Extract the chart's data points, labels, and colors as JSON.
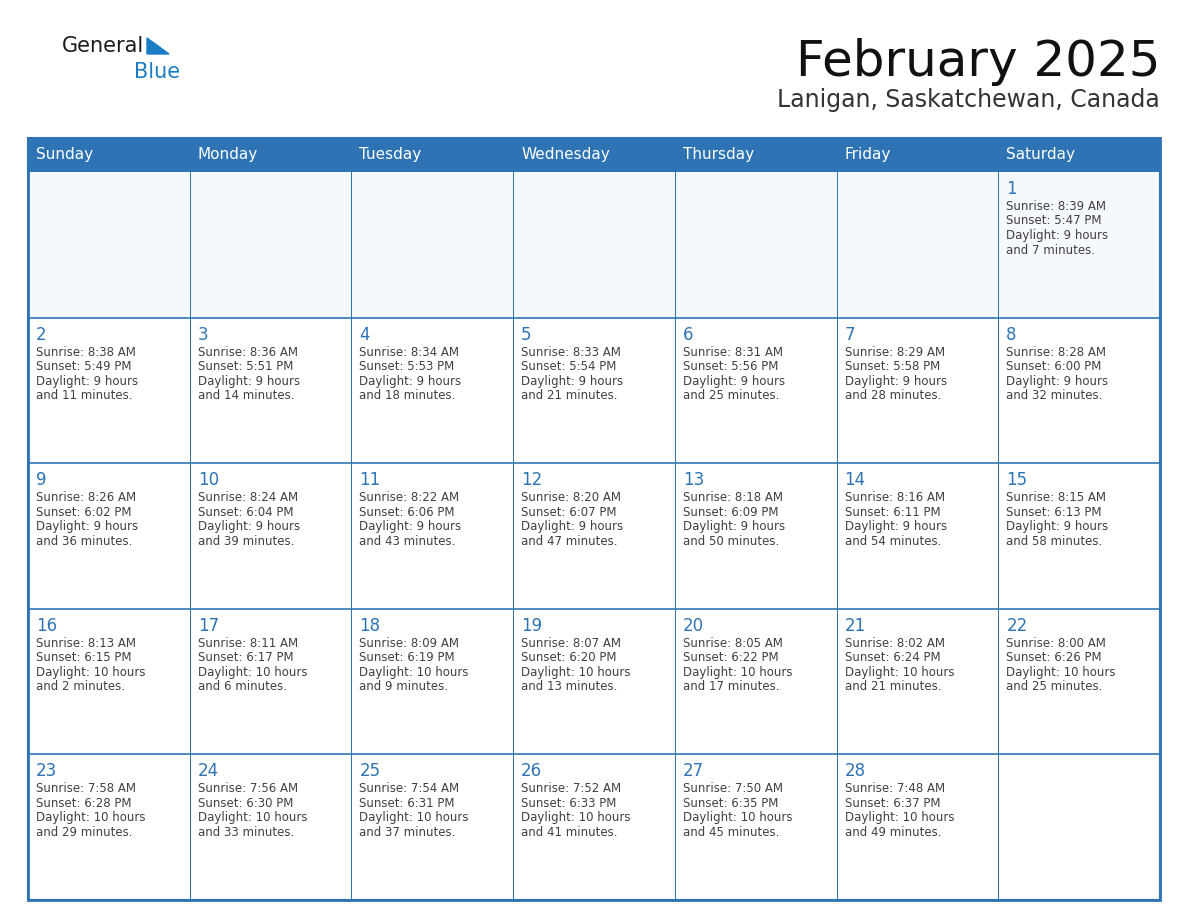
{
  "title": "February 2025",
  "subtitle": "Lanigan, Saskatchewan, Canada",
  "header_bg": "#2E74B5",
  "header_text_color": "#FFFFFF",
  "border_color": "#2E74B5",
  "day_number_color": "#2E74B5",
  "text_color": "#404040",
  "days_of_week": [
    "Sunday",
    "Monday",
    "Tuesday",
    "Wednesday",
    "Thursday",
    "Friday",
    "Saturday"
  ],
  "weeks": [
    [
      {
        "day": null,
        "sunrise": null,
        "sunset": null,
        "daylight": null
      },
      {
        "day": null,
        "sunrise": null,
        "sunset": null,
        "daylight": null
      },
      {
        "day": null,
        "sunrise": null,
        "sunset": null,
        "daylight": null
      },
      {
        "day": null,
        "sunrise": null,
        "sunset": null,
        "daylight": null
      },
      {
        "day": null,
        "sunrise": null,
        "sunset": null,
        "daylight": null
      },
      {
        "day": null,
        "sunrise": null,
        "sunset": null,
        "daylight": null
      },
      {
        "day": 1,
        "sunrise": "8:39 AM",
        "sunset": "5:47 PM",
        "daylight": "9 hours and 7 minutes."
      }
    ],
    [
      {
        "day": 2,
        "sunrise": "8:38 AM",
        "sunset": "5:49 PM",
        "daylight": "9 hours and 11 minutes."
      },
      {
        "day": 3,
        "sunrise": "8:36 AM",
        "sunset": "5:51 PM",
        "daylight": "9 hours and 14 minutes."
      },
      {
        "day": 4,
        "sunrise": "8:34 AM",
        "sunset": "5:53 PM",
        "daylight": "9 hours and 18 minutes."
      },
      {
        "day": 5,
        "sunrise": "8:33 AM",
        "sunset": "5:54 PM",
        "daylight": "9 hours and 21 minutes."
      },
      {
        "day": 6,
        "sunrise": "8:31 AM",
        "sunset": "5:56 PM",
        "daylight": "9 hours and 25 minutes."
      },
      {
        "day": 7,
        "sunrise": "8:29 AM",
        "sunset": "5:58 PM",
        "daylight": "9 hours and 28 minutes."
      },
      {
        "day": 8,
        "sunrise": "8:28 AM",
        "sunset": "6:00 PM",
        "daylight": "9 hours and 32 minutes."
      }
    ],
    [
      {
        "day": 9,
        "sunrise": "8:26 AM",
        "sunset": "6:02 PM",
        "daylight": "9 hours and 36 minutes."
      },
      {
        "day": 10,
        "sunrise": "8:24 AM",
        "sunset": "6:04 PM",
        "daylight": "9 hours and 39 minutes."
      },
      {
        "day": 11,
        "sunrise": "8:22 AM",
        "sunset": "6:06 PM",
        "daylight": "9 hours and 43 minutes."
      },
      {
        "day": 12,
        "sunrise": "8:20 AM",
        "sunset": "6:07 PM",
        "daylight": "9 hours and 47 minutes."
      },
      {
        "day": 13,
        "sunrise": "8:18 AM",
        "sunset": "6:09 PM",
        "daylight": "9 hours and 50 minutes."
      },
      {
        "day": 14,
        "sunrise": "8:16 AM",
        "sunset": "6:11 PM",
        "daylight": "9 hours and 54 minutes."
      },
      {
        "day": 15,
        "sunrise": "8:15 AM",
        "sunset": "6:13 PM",
        "daylight": "9 hours and 58 minutes."
      }
    ],
    [
      {
        "day": 16,
        "sunrise": "8:13 AM",
        "sunset": "6:15 PM",
        "daylight": "10 hours and 2 minutes."
      },
      {
        "day": 17,
        "sunrise": "8:11 AM",
        "sunset": "6:17 PM",
        "daylight": "10 hours and 6 minutes."
      },
      {
        "day": 18,
        "sunrise": "8:09 AM",
        "sunset": "6:19 PM",
        "daylight": "10 hours and 9 minutes."
      },
      {
        "day": 19,
        "sunrise": "8:07 AM",
        "sunset": "6:20 PM",
        "daylight": "10 hours and 13 minutes."
      },
      {
        "day": 20,
        "sunrise": "8:05 AM",
        "sunset": "6:22 PM",
        "daylight": "10 hours and 17 minutes."
      },
      {
        "day": 21,
        "sunrise": "8:02 AM",
        "sunset": "6:24 PM",
        "daylight": "10 hours and 21 minutes."
      },
      {
        "day": 22,
        "sunrise": "8:00 AM",
        "sunset": "6:26 PM",
        "daylight": "10 hours and 25 minutes."
      }
    ],
    [
      {
        "day": 23,
        "sunrise": "7:58 AM",
        "sunset": "6:28 PM",
        "daylight": "10 hours and 29 minutes."
      },
      {
        "day": 24,
        "sunrise": "7:56 AM",
        "sunset": "6:30 PM",
        "daylight": "10 hours and 33 minutes."
      },
      {
        "day": 25,
        "sunrise": "7:54 AM",
        "sunset": "6:31 PM",
        "daylight": "10 hours and 37 minutes."
      },
      {
        "day": 26,
        "sunrise": "7:52 AM",
        "sunset": "6:33 PM",
        "daylight": "10 hours and 41 minutes."
      },
      {
        "day": 27,
        "sunrise": "7:50 AM",
        "sunset": "6:35 PM",
        "daylight": "10 hours and 45 minutes."
      },
      {
        "day": 28,
        "sunrise": "7:48 AM",
        "sunset": "6:37 PM",
        "daylight": "10 hours and 49 minutes."
      },
      {
        "day": null,
        "sunrise": null,
        "sunset": null,
        "daylight": null
      }
    ]
  ],
  "logo_text1": "General",
  "logo_text2": "Blue",
  "logo_color1": "#1a1a1a",
  "logo_color2": "#1A7DC4",
  "logo_triangle_color": "#1A7DC4",
  "figwidth": 11.88,
  "figheight": 9.18,
  "dpi": 100
}
